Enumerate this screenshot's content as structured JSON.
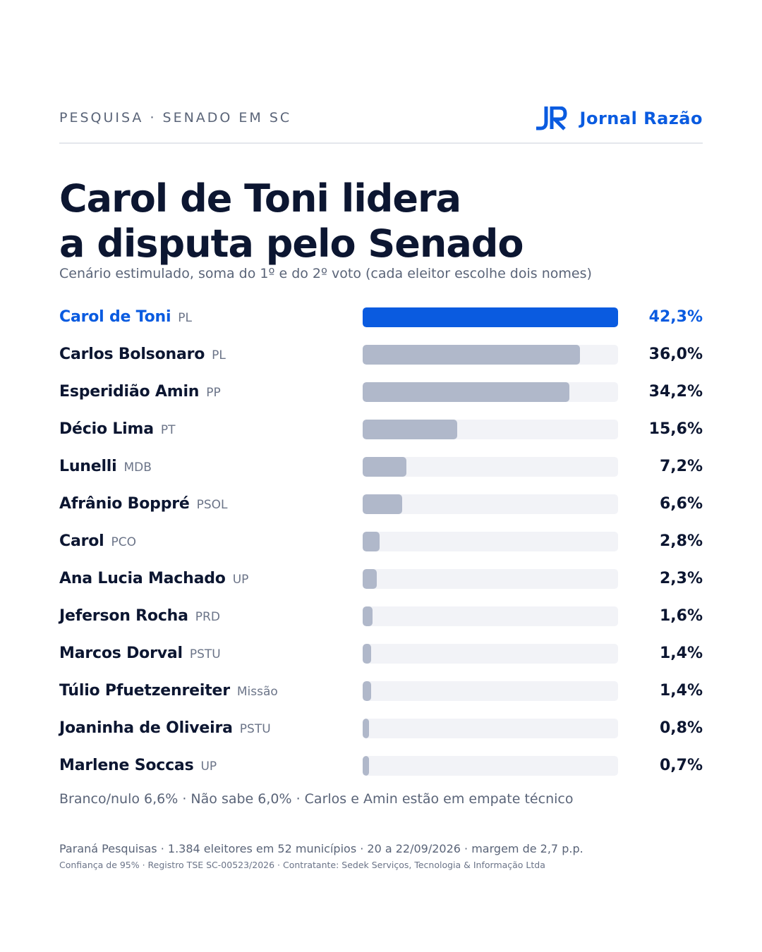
{
  "header": {
    "kicker": "PESQUISA · SENADO EM SC",
    "brand_name": "Jornal Razão",
    "brand_logo_text": "JR"
  },
  "headline": {
    "line1": "Carol de Toni lidera",
    "line2": "a disputa pelo Senado"
  },
  "subtitle": "Cenário estimulado, soma do 1º e do 2º voto (cada eleitor escolhe dois nomes)",
  "colors": {
    "accent": "#0a5be0",
    "bar_default": "#b0b8ca",
    "track": "#f2f3f7",
    "text_dark": "#0c1631",
    "text_muted": "#5a6478"
  },
  "chart_data": {
    "type": "bar",
    "orientation": "horizontal",
    "xlim": [
      0,
      42.3
    ],
    "categories": [
      "Carol de Toni",
      "Carlos Bolsonaro",
      "Esperidião Amin",
      "Décio Lima",
      "Lunelli",
      "Afrânio Boppré",
      "Carol",
      "Ana Lucia Machado",
      "Jeferson Rocha",
      "Marcos Dorval",
      "Túlio Pfuetzenreiter",
      "Joaninha de Oliveira",
      "Marlene Soccas"
    ],
    "parties": [
      "PL",
      "PL",
      "PP",
      "PT",
      "MDB",
      "PSOL",
      "PCO",
      "UP",
      "PRD",
      "PSTU",
      "Missão",
      "PSTU",
      "UP"
    ],
    "values": [
      42.3,
      36.0,
      34.2,
      15.6,
      7.2,
      6.6,
      2.8,
      2.3,
      1.6,
      1.4,
      1.4,
      0.8,
      0.7
    ],
    "value_labels": [
      "42,3%",
      "36,0%",
      "34,2%",
      "15,6%",
      "7,2%",
      "6,6%",
      "2,8%",
      "2,3%",
      "1,6%",
      "1,4%",
      "1,4%",
      "0,8%",
      "0,7%"
    ],
    "highlight_index": 0,
    "grid": false,
    "legend": false
  },
  "notes": {
    "summary": "Branco/nulo 6,6% · Não sabe 6,0% · Carlos e Amin estão em empate técnico",
    "source": "Paraná Pesquisas · 1.384 eleitores em 52 municípios · 20 a 22/09/2026 · margem de 2,7 p.p.",
    "fine_print": "Confiança de 95% · Registro TSE SC-00523/2026 · Contratante: Sedek Serviços, Tecnologia & Informação Ltda"
  }
}
